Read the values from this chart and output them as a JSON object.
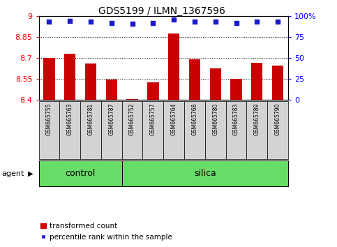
{
  "title": "GDS5199 / ILMN_1367596",
  "samples": [
    "GSM665755",
    "GSM665763",
    "GSM665781",
    "GSM665787",
    "GSM665752",
    "GSM665757",
    "GSM665764",
    "GSM665768",
    "GSM665780",
    "GSM665783",
    "GSM665789",
    "GSM665790"
  ],
  "transformed_count": [
    8.7,
    8.73,
    8.66,
    8.545,
    8.405,
    8.525,
    8.875,
    8.69,
    8.625,
    8.55,
    8.665,
    8.645
  ],
  "percentile_rank": [
    93,
    94,
    93,
    92,
    91,
    92,
    96,
    93,
    93,
    92,
    93,
    93
  ],
  "ylim_left": [
    8.4,
    9.0
  ],
  "ylim_right": [
    0,
    100
  ],
  "yticks_left": [
    8.4,
    8.55,
    8.7,
    8.85,
    9.0
  ],
  "ytick_labels_left": [
    "8.4",
    "8.55",
    "8.7",
    "8.85",
    "9"
  ],
  "yticks_right": [
    0,
    25,
    50,
    75,
    100
  ],
  "ytick_labels_right": [
    "0",
    "25",
    "50",
    "75",
    "100%"
  ],
  "grid_lines": [
    8.55,
    8.7,
    8.85
  ],
  "bar_color": "#cc0000",
  "dot_color": "#1a1acc",
  "tick_bg": "#d3d3d3",
  "green_color": "#66dd66",
  "agent_label": "agent",
  "control_label": "control",
  "silica_label": "silica",
  "legend_bar_label": "transformed count",
  "legend_dot_label": "percentile rank within the sample",
  "n_control": 4,
  "n_silica": 8
}
